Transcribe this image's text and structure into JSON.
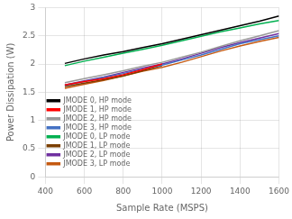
{
  "chart_data": {
    "type": "line",
    "xlabel": "Sample Rate (MSPS)",
    "ylabel": "Power Dissipation (W)",
    "xlim": [
      400,
      1600
    ],
    "ylim": [
      0,
      3
    ],
    "xticks": [
      400,
      600,
      800,
      1000,
      1200,
      1400,
      1600
    ],
    "yticks": [
      0,
      0.5,
      1,
      1.5,
      2,
      2.5,
      3
    ],
    "grid": true,
    "legend": "lower left",
    "series": [
      {
        "name": "JMODE 0, HP mode",
        "color": "#000000",
        "x": [
          500,
          600,
          700,
          800,
          900,
          1000,
          1100,
          1200,
          1300,
          1400,
          1500,
          1600
        ],
        "values": [
          2.01,
          2.09,
          2.16,
          2.22,
          2.29,
          2.36,
          2.44,
          2.52,
          2.6,
          2.68,
          2.76,
          2.85
        ]
      },
      {
        "name": "JMODE 1, HP mode",
        "color": "#ff0000",
        "x": [
          500,
          600,
          700,
          800,
          900,
          1000
        ],
        "values": [
          1.63,
          1.69,
          1.74,
          1.81,
          1.9,
          2.0
        ]
      },
      {
        "name": "JMODE 2, HP mode",
        "color": "#999999",
        "x": [
          500,
          600,
          700,
          800,
          900,
          1000,
          1100,
          1200,
          1300,
          1400,
          1500,
          1600
        ],
        "values": [
          1.67,
          1.74,
          1.81,
          1.88,
          1.96,
          2.03,
          2.12,
          2.21,
          2.31,
          2.41,
          2.5,
          2.59
        ]
      },
      {
        "name": "JMODE 3, HP mode",
        "color": "#4472c4",
        "x": [
          500,
          600,
          700,
          800,
          900,
          1000,
          1100,
          1200,
          1300,
          1400,
          1500,
          1600
        ],
        "values": [
          1.62,
          1.69,
          1.76,
          1.83,
          1.91,
          1.98,
          2.07,
          2.16,
          2.26,
          2.36,
          2.43,
          2.5
        ]
      },
      {
        "name": "JMODE 0, LP mode",
        "color": "#00b050",
        "x": [
          500,
          600,
          700,
          800,
          900,
          1000,
          1100,
          1200,
          1300,
          1400,
          1500,
          1600
        ],
        "values": [
          1.97,
          2.05,
          2.12,
          2.19,
          2.26,
          2.33,
          2.41,
          2.49,
          2.57,
          2.64,
          2.71,
          2.77
        ]
      },
      {
        "name": "JMODE 1, LP mode",
        "color": "#7b3f00",
        "x": [
          500,
          600,
          700,
          800,
          900,
          1000
        ],
        "values": [
          1.6,
          1.66,
          1.72,
          1.79,
          1.88,
          1.97
        ]
      },
      {
        "name": "JMODE 2, LP mode",
        "color": "#7030a0",
        "x": [
          500,
          600,
          700,
          800,
          900,
          1000,
          1100,
          1200,
          1300,
          1400,
          1500,
          1600
        ],
        "values": [
          1.63,
          1.7,
          1.77,
          1.85,
          1.93,
          2.0,
          2.09,
          2.19,
          2.29,
          2.38,
          2.46,
          2.54
        ]
      },
      {
        "name": "JMODE 3, LP mode",
        "color": "#c55a11",
        "x": [
          500,
          600,
          700,
          800,
          900,
          1000,
          1100,
          1200,
          1300,
          1400,
          1500,
          1600
        ],
        "values": [
          1.57,
          1.64,
          1.71,
          1.79,
          1.87,
          1.94,
          2.03,
          2.13,
          2.23,
          2.32,
          2.4,
          2.47
        ]
      }
    ]
  }
}
